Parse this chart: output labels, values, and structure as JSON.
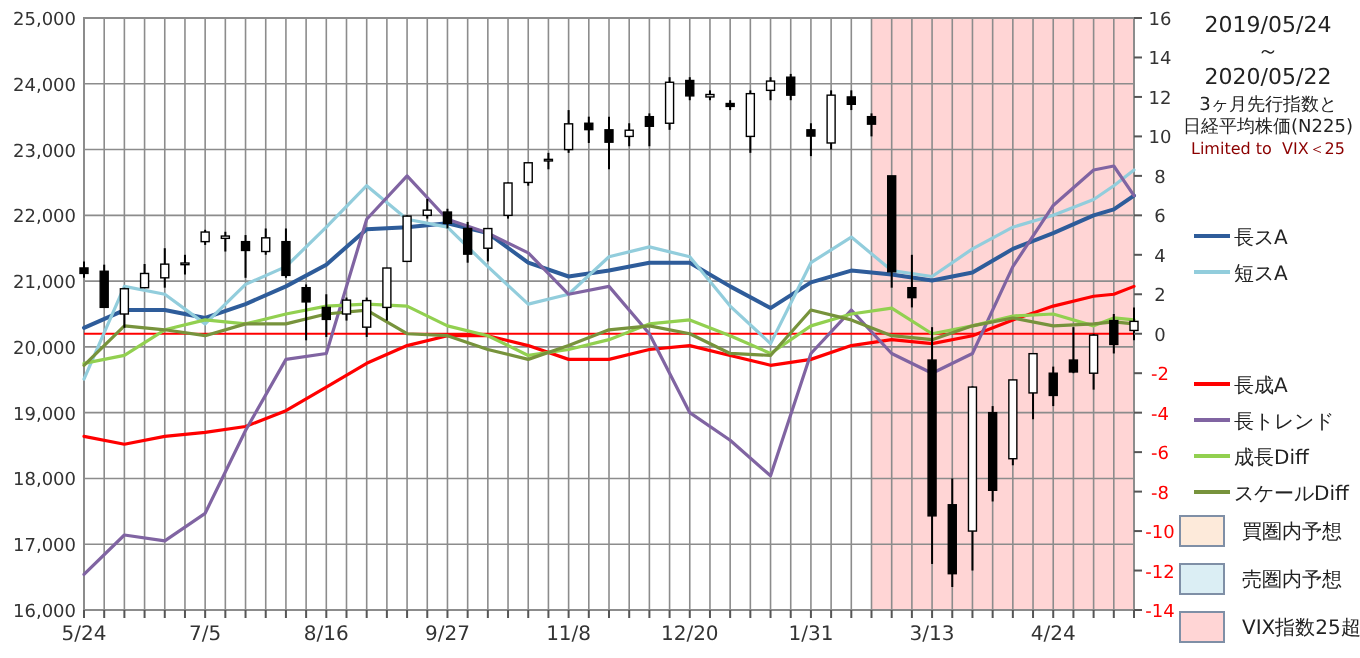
{
  "chart_data": {
    "type": "candlestick",
    "title": "2019/05/24\n～\n2020/05/22",
    "subtitle": "3ヶ月先行指数と",
    "annotations": [
      "日経平均株価(N225)",
      "Limited to  VIX＜25",
      "買圏内予想",
      "売圏内予想"
    ],
    "legend": "right",
    "grid": true,
    "xlim": [
      "2019-05-24",
      "2020-05-22"
    ],
    "xticks": [
      {
        "value": "2019-05-24",
        "label": "5/24"
      },
      {
        "value": "2019-05-31",
        "label": null
      },
      {
        "value": "2019-06-07",
        "label": null
      },
      {
        "value": "2019-06-14",
        "label": null
      },
      {
        "value": "2019-06-21",
        "label": null
      },
      {
        "value": "2019-06-28",
        "label": null
      },
      {
        "value": "2019-07-05",
        "label": "7/5"
      },
      {
        "value": "2019-07-12",
        "label": null
      },
      {
        "value": "2019-07-19",
        "label": null
      },
      {
        "value": "2019-07-26",
        "label": null
      },
      {
        "value": "2019-08-02",
        "label": null
      },
      {
        "value": "2019-08-09",
        "label": null
      },
      {
        "value": "2019-08-16",
        "label": "8/16"
      },
      {
        "value": "2019-08-23",
        "label": null
      },
      {
        "value": "2019-08-30",
        "label": null
      },
      {
        "value": "2019-09-06",
        "label": null
      },
      {
        "value": "2019-09-13",
        "label": null
      },
      {
        "value": "2019-09-20",
        "label": null
      },
      {
        "value": "2019-09-27",
        "label": "9/27"
      },
      {
        "value": "2019-10-04",
        "label": null
      },
      {
        "value": "2019-10-11",
        "label": null
      },
      {
        "value": "2019-10-18",
        "label": null
      },
      {
        "value": "2019-10-25",
        "label": null
      },
      {
        "value": "2019-11-01",
        "label": null
      },
      {
        "value": "2019-11-08",
        "label": "11/8"
      },
      {
        "value": "2019-11-15",
        "label": null
      },
      {
        "value": "2019-11-22",
        "label": null
      },
      {
        "value": "2019-11-29",
        "label": null
      },
      {
        "value": "2019-12-06",
        "label": null
      },
      {
        "value": "2019-12-13",
        "label": null
      },
      {
        "value": "2019-12-20",
        "label": "12/20"
      },
      {
        "value": "2019-12-27",
        "label": null
      },
      {
        "value": "2020-01-03",
        "label": null
      },
      {
        "value": "2020-01-10",
        "label": null
      },
      {
        "value": "2020-01-17",
        "label": null
      },
      {
        "value": "2020-01-24",
        "label": null
      },
      {
        "value": "2020-01-31",
        "label": "1/31"
      },
      {
        "value": "2020-02-07",
        "label": null
      },
      {
        "value": "2020-02-14",
        "label": null
      },
      {
        "value": "2020-02-21",
        "label": null
      },
      {
        "value": "2020-02-28",
        "label": null
      },
      {
        "value": "2020-03-06",
        "label": null
      },
      {
        "value": "2020-03-13",
        "label": "3/13"
      },
      {
        "value": "2020-03-20",
        "label": null
      },
      {
        "value": "2020-03-27",
        "label": null
      },
      {
        "value": "2020-04-03",
        "label": null
      },
      {
        "value": "2020-04-10",
        "label": null
      },
      {
        "value": "2020-04-17",
        "label": null
      },
      {
        "value": "2020-04-24",
        "label": "4/24"
      },
      {
        "value": "2020-05-01",
        "label": null
      },
      {
        "value": "2020-05-08",
        "label": null
      },
      {
        "value": "2020-05-15",
        "label": null
      },
      {
        "value": "2020-05-22",
        "label": null
      }
    ],
    "ylim": [
      16000,
      25000
    ],
    "yticks": [
      {
        "value": 16000,
        "label": "16,000"
      },
      {
        "value": 17000,
        "label": "17,000"
      },
      {
        "value": 18000,
        "label": "18,000"
      },
      {
        "value": 19000,
        "label": "19,000"
      },
      {
        "value": 20000,
        "label": "20,000"
      },
      {
        "value": 21000,
        "label": "21,000"
      },
      {
        "value": 22000,
        "label": "22,000"
      },
      {
        "value": 23000,
        "label": "23,000"
      },
      {
        "value": 24000,
        "label": "24,000"
      },
      {
        "value": 25000,
        "label": "25,000"
      }
    ],
    "y2lim": [
      -14,
      16
    ],
    "y2ticks": [
      -14,
      -12,
      -10,
      -8,
      -6,
      -4,
      -2,
      0,
      2,
      4,
      6,
      8,
      10,
      12,
      14,
      16
    ],
    "x": [
      "2019-05-24",
      "2019-05-31",
      "2019-06-07",
      "2019-06-14",
      "2019-06-21",
      "2019-06-28",
      "2019-07-05",
      "2019-07-12",
      "2019-07-19",
      "2019-07-26",
      "2019-08-02",
      "2019-08-09",
      "2019-08-16",
      "2019-08-23",
      "2019-08-30",
      "2019-09-06",
      "2019-09-13",
      "2019-09-20",
      "2019-09-27",
      "2019-10-04",
      "2019-10-11",
      "2019-10-18",
      "2019-10-25",
      "2019-11-01",
      "2019-11-08",
      "2019-11-15",
      "2019-11-22",
      "2019-11-29",
      "2019-12-06",
      "2019-12-13",
      "2019-12-20",
      "2019-12-27",
      "2020-01-03",
      "2020-01-10",
      "2020-01-17",
      "2020-01-24",
      "2020-01-31",
      "2020-02-07",
      "2020-02-14",
      "2020-02-21",
      "2020-02-28",
      "2020-03-06",
      "2020-03-13",
      "2020-03-20",
      "2020-03-27",
      "2020-04-03",
      "2020-04-10",
      "2020-04-17",
      "2020-04-24",
      "2020-05-01",
      "2020-05-08",
      "2020-05-15",
      "2020-05-22"
    ],
    "ohlc": [
      [
        21200,
        21300,
        21050,
        21117
      ],
      [
        21150,
        21250,
        20600,
        20601
      ],
      [
        20500,
        20900,
        20290,
        20884
      ],
      [
        20900,
        21260,
        20900,
        21116
      ],
      [
        21050,
        21500,
        20900,
        21258
      ],
      [
        21250,
        21400,
        21100,
        21275
      ],
      [
        21600,
        21780,
        21550,
        21746
      ],
      [
        21650,
        21750,
        21450,
        21685
      ],
      [
        21600,
        21700,
        21050,
        21466
      ],
      [
        21450,
        21800,
        21400,
        21658
      ],
      [
        21600,
        21800,
        21050,
        21087
      ],
      [
        20900,
        20950,
        20100,
        20684
      ],
      [
        20600,
        20800,
        20150,
        20418
      ],
      [
        20500,
        20750,
        20400,
        20711
      ],
      [
        20300,
        20750,
        20150,
        20704
      ],
      [
        20600,
        21200,
        20400,
        21199
      ],
      [
        21300,
        22000,
        21300,
        21988
      ],
      [
        22000,
        22250,
        21950,
        22079
      ],
      [
        22050,
        22100,
        21800,
        21878
      ],
      [
        21800,
        21900,
        21280,
        21410
      ],
      [
        21500,
        21800,
        21300,
        21799
      ],
      [
        22000,
        22500,
        21950,
        22492
      ],
      [
        22500,
        22800,
        22450,
        22799
      ],
      [
        22850,
        22950,
        22700,
        22851
      ],
      [
        23000,
        23600,
        22950,
        23391
      ],
      [
        23400,
        23500,
        23100,
        23303
      ],
      [
        23300,
        23500,
        22700,
        23112
      ],
      [
        23200,
        23400,
        23050,
        23294
      ],
      [
        23500,
        23550,
        23050,
        23354
      ],
      [
        23400,
        24100,
        23300,
        24023
      ],
      [
        24050,
        24100,
        23750,
        23816
      ],
      [
        23800,
        23900,
        23750,
        23837
      ],
      [
        23700,
        23750,
        23600,
        23656
      ],
      [
        23200,
        23900,
        22950,
        23850
      ],
      [
        23900,
        24100,
        23750,
        24041
      ],
      [
        24100,
        24150,
        23750,
        23827
      ],
      [
        23300,
        23400,
        22900,
        23205
      ],
      [
        23100,
        23900,
        23000,
        23827
      ],
      [
        23800,
        23900,
        23600,
        23688
      ],
      [
        23500,
        23550,
        23200,
        23386
      ],
      [
        22600,
        22600,
        20900,
        21142
      ],
      [
        20900,
        21400,
        20600,
        20749
      ],
      [
        19800,
        20300,
        16700,
        17431
      ],
      [
        17600,
        18000,
        16350,
        16552
      ],
      [
        17200,
        19400,
        16600,
        19389
      ],
      [
        19000,
        19100,
        17650,
        17820
      ],
      [
        18300,
        19500,
        18200,
        19498
      ],
      [
        19300,
        19900,
        18900,
        19897
      ],
      [
        19600,
        19700,
        19100,
        19262
      ],
      [
        19800,
        20300,
        19600,
        19619
      ],
      [
        19600,
        20200,
        19350,
        20179
      ],
      [
        20400,
        20500,
        19900,
        20037
      ],
      [
        20250,
        20600,
        20100,
        20388
      ]
    ],
    "series": [
      {
        "name": "長スA",
        "type": "line",
        "axis": "y2",
        "color": "#2e5c9a",
        "x": [
          "2019-05-24",
          "2019-06-07",
          "2019-06-21",
          "2019-07-05",
          "2019-07-19",
          "2019-08-02",
          "2019-08-16",
          "2019-08-30",
          "2019-09-13",
          "2019-09-27",
          "2019-10-11",
          "2019-10-25",
          "2019-11-08",
          "2019-11-22",
          "2019-12-06",
          "2019-12-20",
          "2020-01-03",
          "2020-01-17",
          "2020-01-31",
          "2020-02-14",
          "2020-02-28",
          "2020-03-13",
          "2020-03-27",
          "2020-04-10",
          "2020-04-24",
          "2020-05-08",
          "2020-05-15",
          "2020-05-22"
        ],
        "values": [
          0.3,
          1.2,
          1.2,
          0.8,
          1.5,
          2.4,
          3.5,
          5.3,
          5.4,
          5.6,
          5.1,
          3.6,
          2.9,
          3.2,
          3.6,
          3.6,
          2.4,
          1.3,
          2.6,
          3.2,
          3.0,
          2.7,
          3.1,
          4.3,
          5.1,
          6.0,
          6.3,
          7.0
        ]
      },
      {
        "name": "短スA",
        "type": "line",
        "axis": "y2",
        "color": "#92cddc",
        "x": [
          "2019-05-24",
          "2019-06-07",
          "2019-06-21",
          "2019-07-05",
          "2019-07-19",
          "2019-08-02",
          "2019-08-16",
          "2019-08-30",
          "2019-09-13",
          "2019-09-27",
          "2019-10-11",
          "2019-10-25",
          "2019-11-08",
          "2019-11-22",
          "2019-12-06",
          "2019-12-20",
          "2020-01-03",
          "2020-01-17",
          "2020-01-31",
          "2020-02-14",
          "2020-02-28",
          "2020-03-13",
          "2020-03-27",
          "2020-04-10",
          "2020-04-24",
          "2020-05-08",
          "2020-05-15",
          "2020-05-22"
        ],
        "values": [
          -2.3,
          2.4,
          2.0,
          0.5,
          2.5,
          3.4,
          5.4,
          7.5,
          5.8,
          5.4,
          3.4,
          1.5,
          2.0,
          3.9,
          4.4,
          3.9,
          1.4,
          -0.5,
          3.6,
          4.9,
          3.2,
          2.9,
          4.3,
          5.4,
          6.0,
          6.8,
          7.5,
          8.3
        ]
      },
      {
        "name": "長成A",
        "type": "line",
        "axis": "y2",
        "color": "#ff0000",
        "x": [
          "2019-05-24",
          "2019-06-07",
          "2019-06-21",
          "2019-07-05",
          "2019-07-19",
          "2019-08-02",
          "2019-08-16",
          "2019-08-30",
          "2019-09-13",
          "2019-09-27",
          "2019-10-11",
          "2019-10-25",
          "2019-11-08",
          "2019-11-22",
          "2019-12-06",
          "2019-12-20",
          "2020-01-03",
          "2020-01-17",
          "2020-01-31",
          "2020-02-14",
          "2020-02-28",
          "2020-03-13",
          "2020-03-27",
          "2020-04-10",
          "2020-04-24",
          "2020-05-08",
          "2020-05-15",
          "2020-05-22"
        ],
        "values": [
          -5.2,
          -5.6,
          -5.2,
          -5.0,
          -4.7,
          -3.9,
          -2.7,
          -1.5,
          -0.6,
          -0.1,
          -0.1,
          -0.6,
          -1.3,
          -1.3,
          -0.8,
          -0.6,
          -1.1,
          -1.6,
          -1.3,
          -0.6,
          -0.3,
          -0.5,
          -0.1,
          0.7,
          1.4,
          1.9,
          2.0,
          2.4
        ]
      },
      {
        "name": "長トレンド",
        "type": "line",
        "axis": "y2",
        "color": "#8064a2",
        "x": [
          "2019-05-24",
          "2019-06-07",
          "2019-06-21",
          "2019-07-05",
          "2019-07-19",
          "2019-08-02",
          "2019-08-16",
          "2019-08-30",
          "2019-09-13",
          "2019-09-27",
          "2019-10-11",
          "2019-10-25",
          "2019-11-08",
          "2019-11-22",
          "2019-12-06",
          "2019-12-20",
          "2020-01-03",
          "2020-01-17",
          "2020-01-31",
          "2020-02-14",
          "2020-02-28",
          "2020-03-13",
          "2020-03-27",
          "2020-04-10",
          "2020-04-24",
          "2020-05-08",
          "2020-05-15",
          "2020-05-22"
        ],
        "values": [
          -12.2,
          -10.2,
          -10.5,
          -9.1,
          -4.9,
          -1.3,
          -1.0,
          5.8,
          8.0,
          5.8,
          5.1,
          4.1,
          2.0,
          2.4,
          0.0,
          -4.0,
          -5.4,
          -7.2,
          -1.0,
          1.2,
          -1.0,
          -2.0,
          -1.0,
          3.4,
          6.5,
          8.3,
          8.5,
          7.0
        ]
      },
      {
        "name": "成長Diff",
        "type": "line",
        "axis": "y2",
        "color": "#92d050",
        "x": [
          "2019-05-24",
          "2019-06-07",
          "2019-06-21",
          "2019-07-05",
          "2019-07-19",
          "2019-08-02",
          "2019-08-16",
          "2019-08-30",
          "2019-09-13",
          "2019-09-27",
          "2019-10-11",
          "2019-10-25",
          "2019-11-08",
          "2019-11-22",
          "2019-12-06",
          "2019-12-20",
          "2020-01-03",
          "2020-01-17",
          "2020-01-31",
          "2020-02-14",
          "2020-02-28",
          "2020-03-13",
          "2020-03-27",
          "2020-04-10",
          "2020-04-24",
          "2020-05-08",
          "2020-05-15",
          "2020-05-22"
        ],
        "values": [
          -1.5,
          -1.1,
          0.2,
          0.7,
          0.5,
          1.0,
          1.4,
          1.5,
          1.4,
          0.4,
          -0.1,
          -1.1,
          -0.8,
          -0.3,
          0.5,
          0.7,
          -0.1,
          -1.0,
          0.4,
          1.0,
          1.3,
          0.0,
          0.4,
          0.9,
          1.0,
          0.4,
          0.8,
          0.7
        ]
      },
      {
        "name": "スケールDiff",
        "type": "line",
        "axis": "y2",
        "color": "#77933c",
        "x": [
          "2019-05-24",
          "2019-06-07",
          "2019-06-21",
          "2019-07-05",
          "2019-07-19",
          "2019-08-02",
          "2019-08-16",
          "2019-08-30",
          "2019-09-13",
          "2019-09-27",
          "2019-10-11",
          "2019-10-25",
          "2019-11-08",
          "2019-11-22",
          "2019-12-06",
          "2019-12-20",
          "2020-01-03",
          "2020-01-17",
          "2020-01-31",
          "2020-02-14",
          "2020-02-28",
          "2020-03-13",
          "2020-03-27",
          "2020-04-10",
          "2020-04-24",
          "2020-05-08",
          "2020-05-15",
          "2020-05-22"
        ],
        "values": [
          -1.6,
          0.4,
          0.2,
          -0.1,
          0.5,
          0.5,
          1.0,
          1.2,
          0.0,
          -0.1,
          -0.8,
          -1.3,
          -0.6,
          0.2,
          0.4,
          0.0,
          -1.0,
          -1.1,
          1.2,
          0.7,
          -0.1,
          -0.3,
          0.4,
          0.8,
          0.4,
          0.5,
          0.6,
          0.5
        ]
      }
    ],
    "ref_lines": [
      {
        "axis": "y2",
        "value": 0,
        "color": "#ff0000"
      }
    ],
    "bands": [
      {
        "axis": "x",
        "from": "2020-02-21",
        "to": "2020-05-22",
        "label": "VIX指数25超",
        "color": "#ffd5d5"
      }
    ]
  }
}
